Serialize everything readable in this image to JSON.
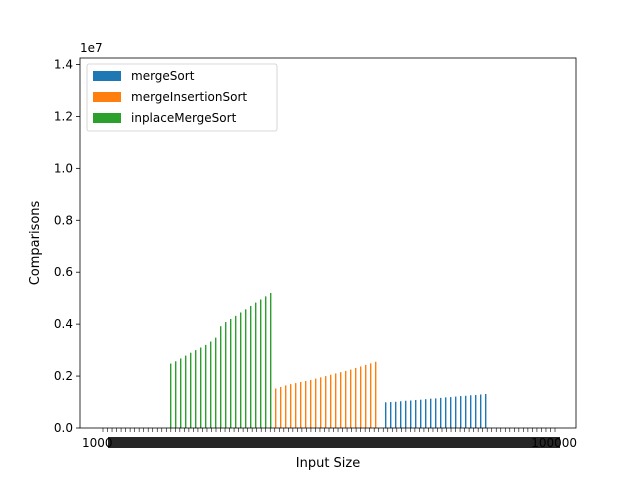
{
  "chart_data": {
    "type": "bar",
    "xlabel": "Input Size",
    "ylabel": "Comparisons",
    "y_scale_label": "1e7",
    "ylim": [
      0,
      14250000
    ],
    "y_ticks": [
      0,
      2000000,
      4000000,
      6000000,
      8000000,
      10000000,
      12000000,
      14000000
    ],
    "y_tick_labels": [
      "0.0",
      "0.2",
      "0.4",
      "0.6",
      "0.8",
      "1.0",
      "1.2",
      "1.4"
    ],
    "x_tick_first_label": "1000",
    "x_tick_last_label": "100000",
    "legend_position": "top-left",
    "series": [
      {
        "name": "mergeSort",
        "color": "#1f77b4",
        "values": [
          990000,
          1000000,
          1010000,
          1030000,
          1050000,
          1060000,
          1080000,
          1090000,
          1110000,
          1130000,
          1140000,
          1160000,
          1180000,
          1190000,
          1210000,
          1230000,
          1240000,
          1260000,
          1270000,
          1290000,
          1310000
        ]
      },
      {
        "name": "mergeInsertionSort",
        "color": "#ff7f0e",
        "values": [
          1520000,
          1580000,
          1640000,
          1690000,
          1730000,
          1770000,
          1810000,
          1850000,
          1900000,
          1950000,
          2000000,
          2050000,
          2100000,
          2150000,
          2200000,
          2250000,
          2310000,
          2370000,
          2430000,
          2490000,
          2550000
        ]
      },
      {
        "name": "inplaceMergeSort",
        "color": "#2ca02c",
        "values": [
          2480000,
          2570000,
          2680000,
          2790000,
          2900000,
          3000000,
          3100000,
          3200000,
          3330000,
          3480000,
          3920000,
          4080000,
          4200000,
          4320000,
          4450000,
          4570000,
          4700000,
          4830000,
          4950000,
          5070000,
          5200000
        ]
      }
    ]
  }
}
